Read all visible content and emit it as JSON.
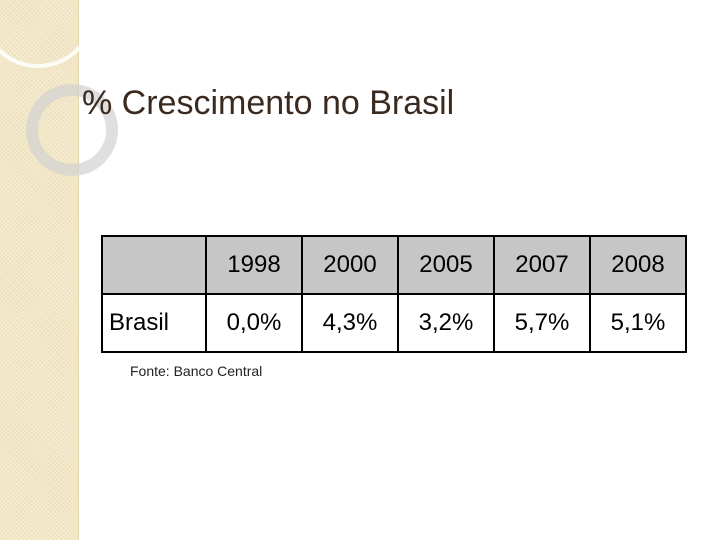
{
  "slide": {
    "title": "% Crescimento no Brasil",
    "source": "Fonte: Banco Central"
  },
  "table": {
    "corner_label": "",
    "years": [
      "1998",
      "2000",
      "2005",
      "2007",
      "2008"
    ],
    "rows": [
      {
        "label": "Brasil",
        "values": [
          "0,0%",
          "4,3%",
          "3,2%",
          "5,7%",
          "5,1%"
        ]
      }
    ]
  },
  "colors": {
    "sidebar": "#f2e6c4",
    "header_fill": "#c6c6c6",
    "title_text": "#3a2a20"
  }
}
